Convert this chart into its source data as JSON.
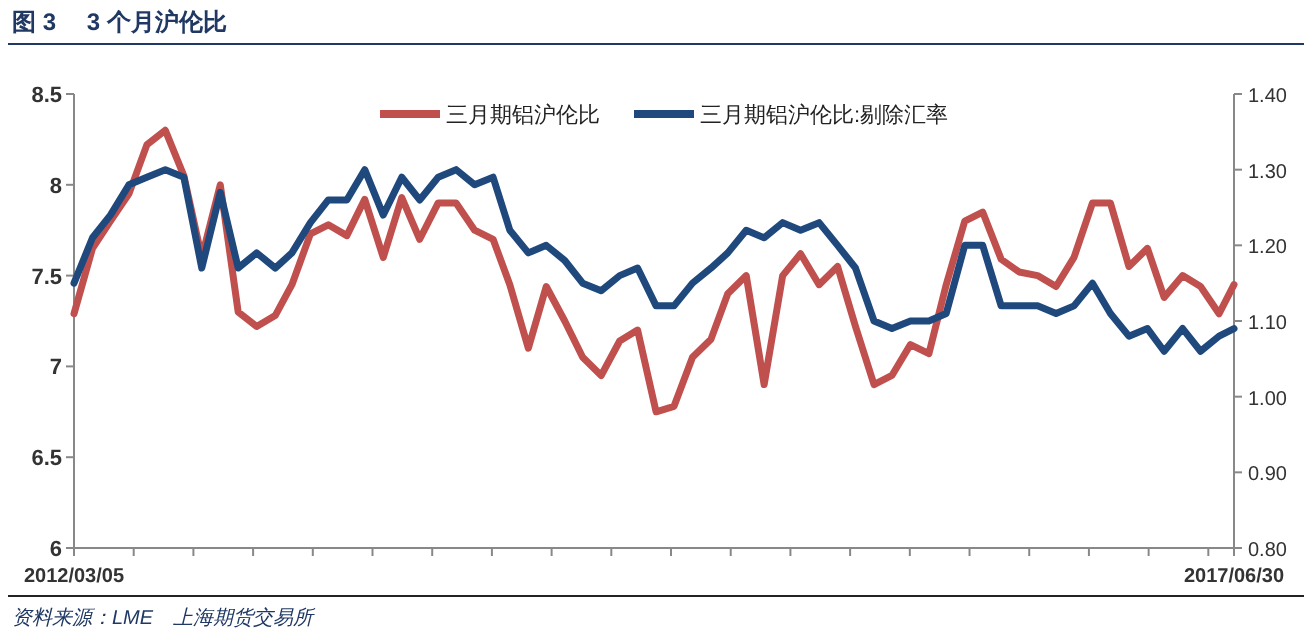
{
  "chart_data": {
    "type": "line",
    "title": "图 3　 3 个月沪伦比",
    "annotations": [
      "资料来源：LME　上海期货交易所"
    ],
    "legend": "top",
    "line_style": "solid",
    "x": [
      "2012-03-05",
      "2012-04-05",
      "2012-05-05",
      "2012-06-05",
      "2012-07-05",
      "2012-08-05",
      "2012-09-05",
      "2012-10-05",
      "2012-11-05",
      "2012-12-05",
      "2013-01-05",
      "2013-02-05",
      "2013-03-05",
      "2013-04-05",
      "2013-05-05",
      "2013-06-05",
      "2013-07-05",
      "2013-08-05",
      "2013-09-05",
      "2013-10-05",
      "2013-11-05",
      "2013-12-05",
      "2014-01-05",
      "2014-02-05",
      "2014-03-05",
      "2014-04-05",
      "2014-05-05",
      "2014-06-05",
      "2014-07-05",
      "2014-08-05",
      "2014-09-05",
      "2014-10-05",
      "2014-11-05",
      "2014-12-05",
      "2015-01-05",
      "2015-02-05",
      "2015-03-05",
      "2015-04-05",
      "2015-05-05",
      "2015-06-05",
      "2015-07-05",
      "2015-08-05",
      "2015-09-05",
      "2015-10-05",
      "2015-11-05",
      "2015-12-05",
      "2016-01-05",
      "2016-02-05",
      "2016-03-05",
      "2016-04-05",
      "2016-05-05",
      "2016-06-05",
      "2016-07-05",
      "2016-08-05",
      "2016-09-05",
      "2016-10-05",
      "2016-11-05",
      "2016-12-05",
      "2017-01-05",
      "2017-02-05",
      "2017-03-05",
      "2017-04-05",
      "2017-05-05",
      "2017-06-05",
      "2017-06-30"
    ],
    "series": [
      {
        "name": "三月期铝沪伦比",
        "color": "#c0504d",
        "values": [
          7.29,
          7.65,
          7.8,
          7.95,
          8.22,
          8.3,
          8.05,
          7.6,
          8.0,
          7.3,
          7.22,
          7.28,
          7.45,
          7.73,
          7.78,
          7.72,
          7.92,
          7.6,
          7.93,
          7.7,
          7.9,
          7.9,
          7.75,
          7.7,
          7.45,
          7.1,
          7.44,
          7.25,
          7.05,
          6.95,
          7.14,
          7.2,
          6.75,
          6.78,
          7.05,
          7.15,
          7.4,
          7.5,
          6.9,
          7.5,
          7.62,
          7.45,
          7.55,
          7.22,
          6.9,
          6.95,
          7.12,
          7.07,
          7.45,
          7.8,
          7.85,
          7.59,
          7.52,
          7.5,
          7.44,
          7.6,
          7.9,
          7.9,
          7.55,
          7.65,
          7.38,
          7.5,
          7.44,
          7.29,
          7.45
        ]
      },
      {
        "name": "三月期铝沪伦比:剔除汇率",
        "color": "#1f497d",
        "axis": "y2",
        "values": [
          1.15,
          1.21,
          1.24,
          1.28,
          1.29,
          1.3,
          1.29,
          1.17,
          1.27,
          1.17,
          1.19,
          1.17,
          1.19,
          1.23,
          1.26,
          1.26,
          1.3,
          1.24,
          1.29,
          1.26,
          1.29,
          1.3,
          1.28,
          1.29,
          1.22,
          1.19,
          1.2,
          1.18,
          1.15,
          1.14,
          1.16,
          1.17,
          1.12,
          1.12,
          1.15,
          1.17,
          1.19,
          1.22,
          1.21,
          1.23,
          1.22,
          1.23,
          1.2,
          1.17,
          1.1,
          1.09,
          1.1,
          1.1,
          1.11,
          1.2,
          1.2,
          1.12,
          1.12,
          1.12,
          1.11,
          1.12,
          1.15,
          1.11,
          1.08,
          1.09,
          1.06,
          1.09,
          1.06,
          1.08,
          1.09
        ]
      }
    ],
    "xlim": [
      "2012-03-05",
      "2017-06-30"
    ],
    "xticks": [
      {
        "value": "2012-03-05",
        "label": "2012/03/05"
      },
      {
        "value": "2012-06-13",
        "label": null
      },
      {
        "value": "2012-09-21",
        "label": null
      },
      {
        "value": "2012-12-30",
        "label": null
      },
      {
        "value": "2013-04-09",
        "label": null
      },
      {
        "value": "2013-07-18",
        "label": null
      },
      {
        "value": "2013-10-26",
        "label": null
      },
      {
        "value": "2014-02-03",
        "label": null
      },
      {
        "value": "2014-05-14",
        "label": null
      },
      {
        "value": "2014-08-22",
        "label": null
      },
      {
        "value": "2014-11-30",
        "label": null
      },
      {
        "value": "2015-03-10",
        "label": null
      },
      {
        "value": "2015-06-18",
        "label": null
      },
      {
        "value": "2015-09-26",
        "label": null
      },
      {
        "value": "2016-01-04",
        "label": null
      },
      {
        "value": "2016-04-13",
        "label": null
      },
      {
        "value": "2016-07-22",
        "label": null
      },
      {
        "value": "2016-10-30",
        "label": null
      },
      {
        "value": "2017-02-07",
        "label": null
      },
      {
        "value": "2017-05-18",
        "label": null
      },
      {
        "value": "2017-06-30",
        "label": "2017/06/30"
      }
    ],
    "ylim": [
      6,
      8.5
    ],
    "yticks": [
      6,
      6.5,
      7,
      7.5,
      8,
      8.5
    ],
    "y2lim": [
      0.8,
      1.4
    ],
    "y2ticks": [
      {
        "value": 0.8,
        "label": "0.80"
      },
      {
        "value": 0.9,
        "label": "0.90"
      },
      {
        "value": 1.0,
        "label": "1.00"
      },
      {
        "value": 1.1,
        "label": "1.10"
      },
      {
        "value": 1.2,
        "label": "1.20"
      },
      {
        "value": 1.3,
        "label": "1.30"
      },
      {
        "value": 1.4,
        "label": "1.40"
      }
    ]
  }
}
